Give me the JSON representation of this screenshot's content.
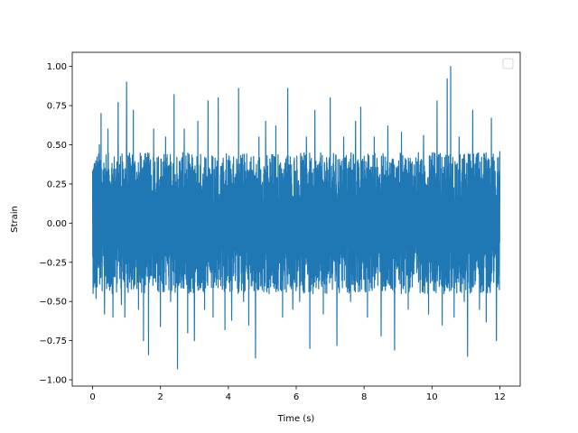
{
  "chart_data": {
    "type": "line",
    "title": "",
    "xlabel": "Time (s)",
    "ylabel": "Strain",
    "xlim": [
      -0.6,
      12.6
    ],
    "ylim": [
      -1.04,
      1.09
    ],
    "xticks": [
      0,
      2,
      4,
      6,
      8,
      10,
      12
    ],
    "xtick_labels": [
      "0",
      "2",
      "4",
      "6",
      "8",
      "10",
      "12"
    ],
    "yticks": [
      -1.0,
      -0.75,
      -0.5,
      -0.25,
      0.0,
      0.25,
      0.5,
      0.75,
      1.0
    ],
    "ytick_labels": [
      "−1.00",
      "−0.75",
      "−0.50",
      "−0.25",
      "0.00",
      "0.25",
      "0.50",
      "0.75",
      "1.00"
    ],
    "grid": false,
    "legend": {
      "position": "top-right",
      "entries": []
    },
    "series": [
      {
        "color": "#1f77b4",
        "x_range": [
          0,
          12
        ],
        "peaks": [
          {
            "x": 0.05,
            "y": 0.38
          },
          {
            "x": 0.1,
            "y": -0.48
          },
          {
            "x": 0.2,
            "y": 0.5
          },
          {
            "x": 0.25,
            "y": 0.7
          },
          {
            "x": 0.35,
            "y": -0.58
          },
          {
            "x": 0.45,
            "y": 0.6
          },
          {
            "x": 0.6,
            "y": -0.6
          },
          {
            "x": 0.75,
            "y": 0.77
          },
          {
            "x": 0.85,
            "y": -0.52
          },
          {
            "x": 0.95,
            "y": -0.6
          },
          {
            "x": 1.0,
            "y": 0.9
          },
          {
            "x": 1.2,
            "y": 0.72
          },
          {
            "x": 1.35,
            "y": -0.55
          },
          {
            "x": 1.5,
            "y": -0.75
          },
          {
            "x": 1.65,
            "y": -0.84
          },
          {
            "x": 1.8,
            "y": 0.6
          },
          {
            "x": 2.0,
            "y": -0.66
          },
          {
            "x": 2.15,
            "y": 0.55
          },
          {
            "x": 2.3,
            "y": -0.5
          },
          {
            "x": 2.4,
            "y": 0.82
          },
          {
            "x": 2.5,
            "y": -0.93
          },
          {
            "x": 2.7,
            "y": 0.6
          },
          {
            "x": 2.8,
            "y": -0.7
          },
          {
            "x": 3.0,
            "y": -0.75
          },
          {
            "x": 3.1,
            "y": 0.65
          },
          {
            "x": 3.3,
            "y": -0.55
          },
          {
            "x": 3.4,
            "y": 0.78
          },
          {
            "x": 3.55,
            "y": -0.6
          },
          {
            "x": 3.7,
            "y": 0.8
          },
          {
            "x": 3.9,
            "y": -0.68
          },
          {
            "x": 4.1,
            "y": -0.62
          },
          {
            "x": 4.3,
            "y": 0.86
          },
          {
            "x": 4.45,
            "y": -0.5
          },
          {
            "x": 4.6,
            "y": -0.65
          },
          {
            "x": 4.8,
            "y": -0.86
          },
          {
            "x": 4.9,
            "y": 0.55
          },
          {
            "x": 5.1,
            "y": 0.65
          },
          {
            "x": 5.2,
            "y": -0.45
          },
          {
            "x": 5.4,
            "y": 0.62
          },
          {
            "x": 5.6,
            "y": -0.6
          },
          {
            "x": 5.75,
            "y": 0.86
          },
          {
            "x": 5.9,
            "y": -0.55
          },
          {
            "x": 6.1,
            "y": -0.5
          },
          {
            "x": 6.3,
            "y": 0.55
          },
          {
            "x": 6.4,
            "y": -0.8
          },
          {
            "x": 6.55,
            "y": 0.72
          },
          {
            "x": 6.8,
            "y": -0.58
          },
          {
            "x": 7.0,
            "y": 0.8
          },
          {
            "x": 7.2,
            "y": -0.78
          },
          {
            "x": 7.4,
            "y": 0.55
          },
          {
            "x": 7.6,
            "y": -0.5
          },
          {
            "x": 7.75,
            "y": 0.65
          },
          {
            "x": 7.9,
            "y": 0.74
          },
          {
            "x": 8.1,
            "y": -0.6
          },
          {
            "x": 8.3,
            "y": 0.55
          },
          {
            "x": 8.5,
            "y": -0.72
          },
          {
            "x": 8.7,
            "y": 0.62
          },
          {
            "x": 8.9,
            "y": -0.81
          },
          {
            "x": 9.1,
            "y": 0.58
          },
          {
            "x": 9.3,
            "y": -0.55
          },
          {
            "x": 9.6,
            "y": 0.45
          },
          {
            "x": 9.75,
            "y": 0.56
          },
          {
            "x": 9.9,
            "y": -0.58
          },
          {
            "x": 10.05,
            "y": 0.45
          },
          {
            "x": 10.15,
            "y": 0.78
          },
          {
            "x": 10.3,
            "y": -0.65
          },
          {
            "x": 10.45,
            "y": 0.92
          },
          {
            "x": 10.55,
            "y": 1.0
          },
          {
            "x": 10.65,
            "y": -0.6
          },
          {
            "x": 10.8,
            "y": 0.55
          },
          {
            "x": 10.95,
            "y": -0.5
          },
          {
            "x": 11.05,
            "y": -0.85
          },
          {
            "x": 11.2,
            "y": 0.72
          },
          {
            "x": 11.4,
            "y": -0.55
          },
          {
            "x": 11.6,
            "y": -0.63
          },
          {
            "x": 11.75,
            "y": 0.67
          },
          {
            "x": 11.9,
            "y": -0.75
          },
          {
            "x": 12.0,
            "y": 0.46
          }
        ],
        "envelope": {
          "positive": 0.45,
          "negative": -0.45
        }
      }
    ]
  }
}
